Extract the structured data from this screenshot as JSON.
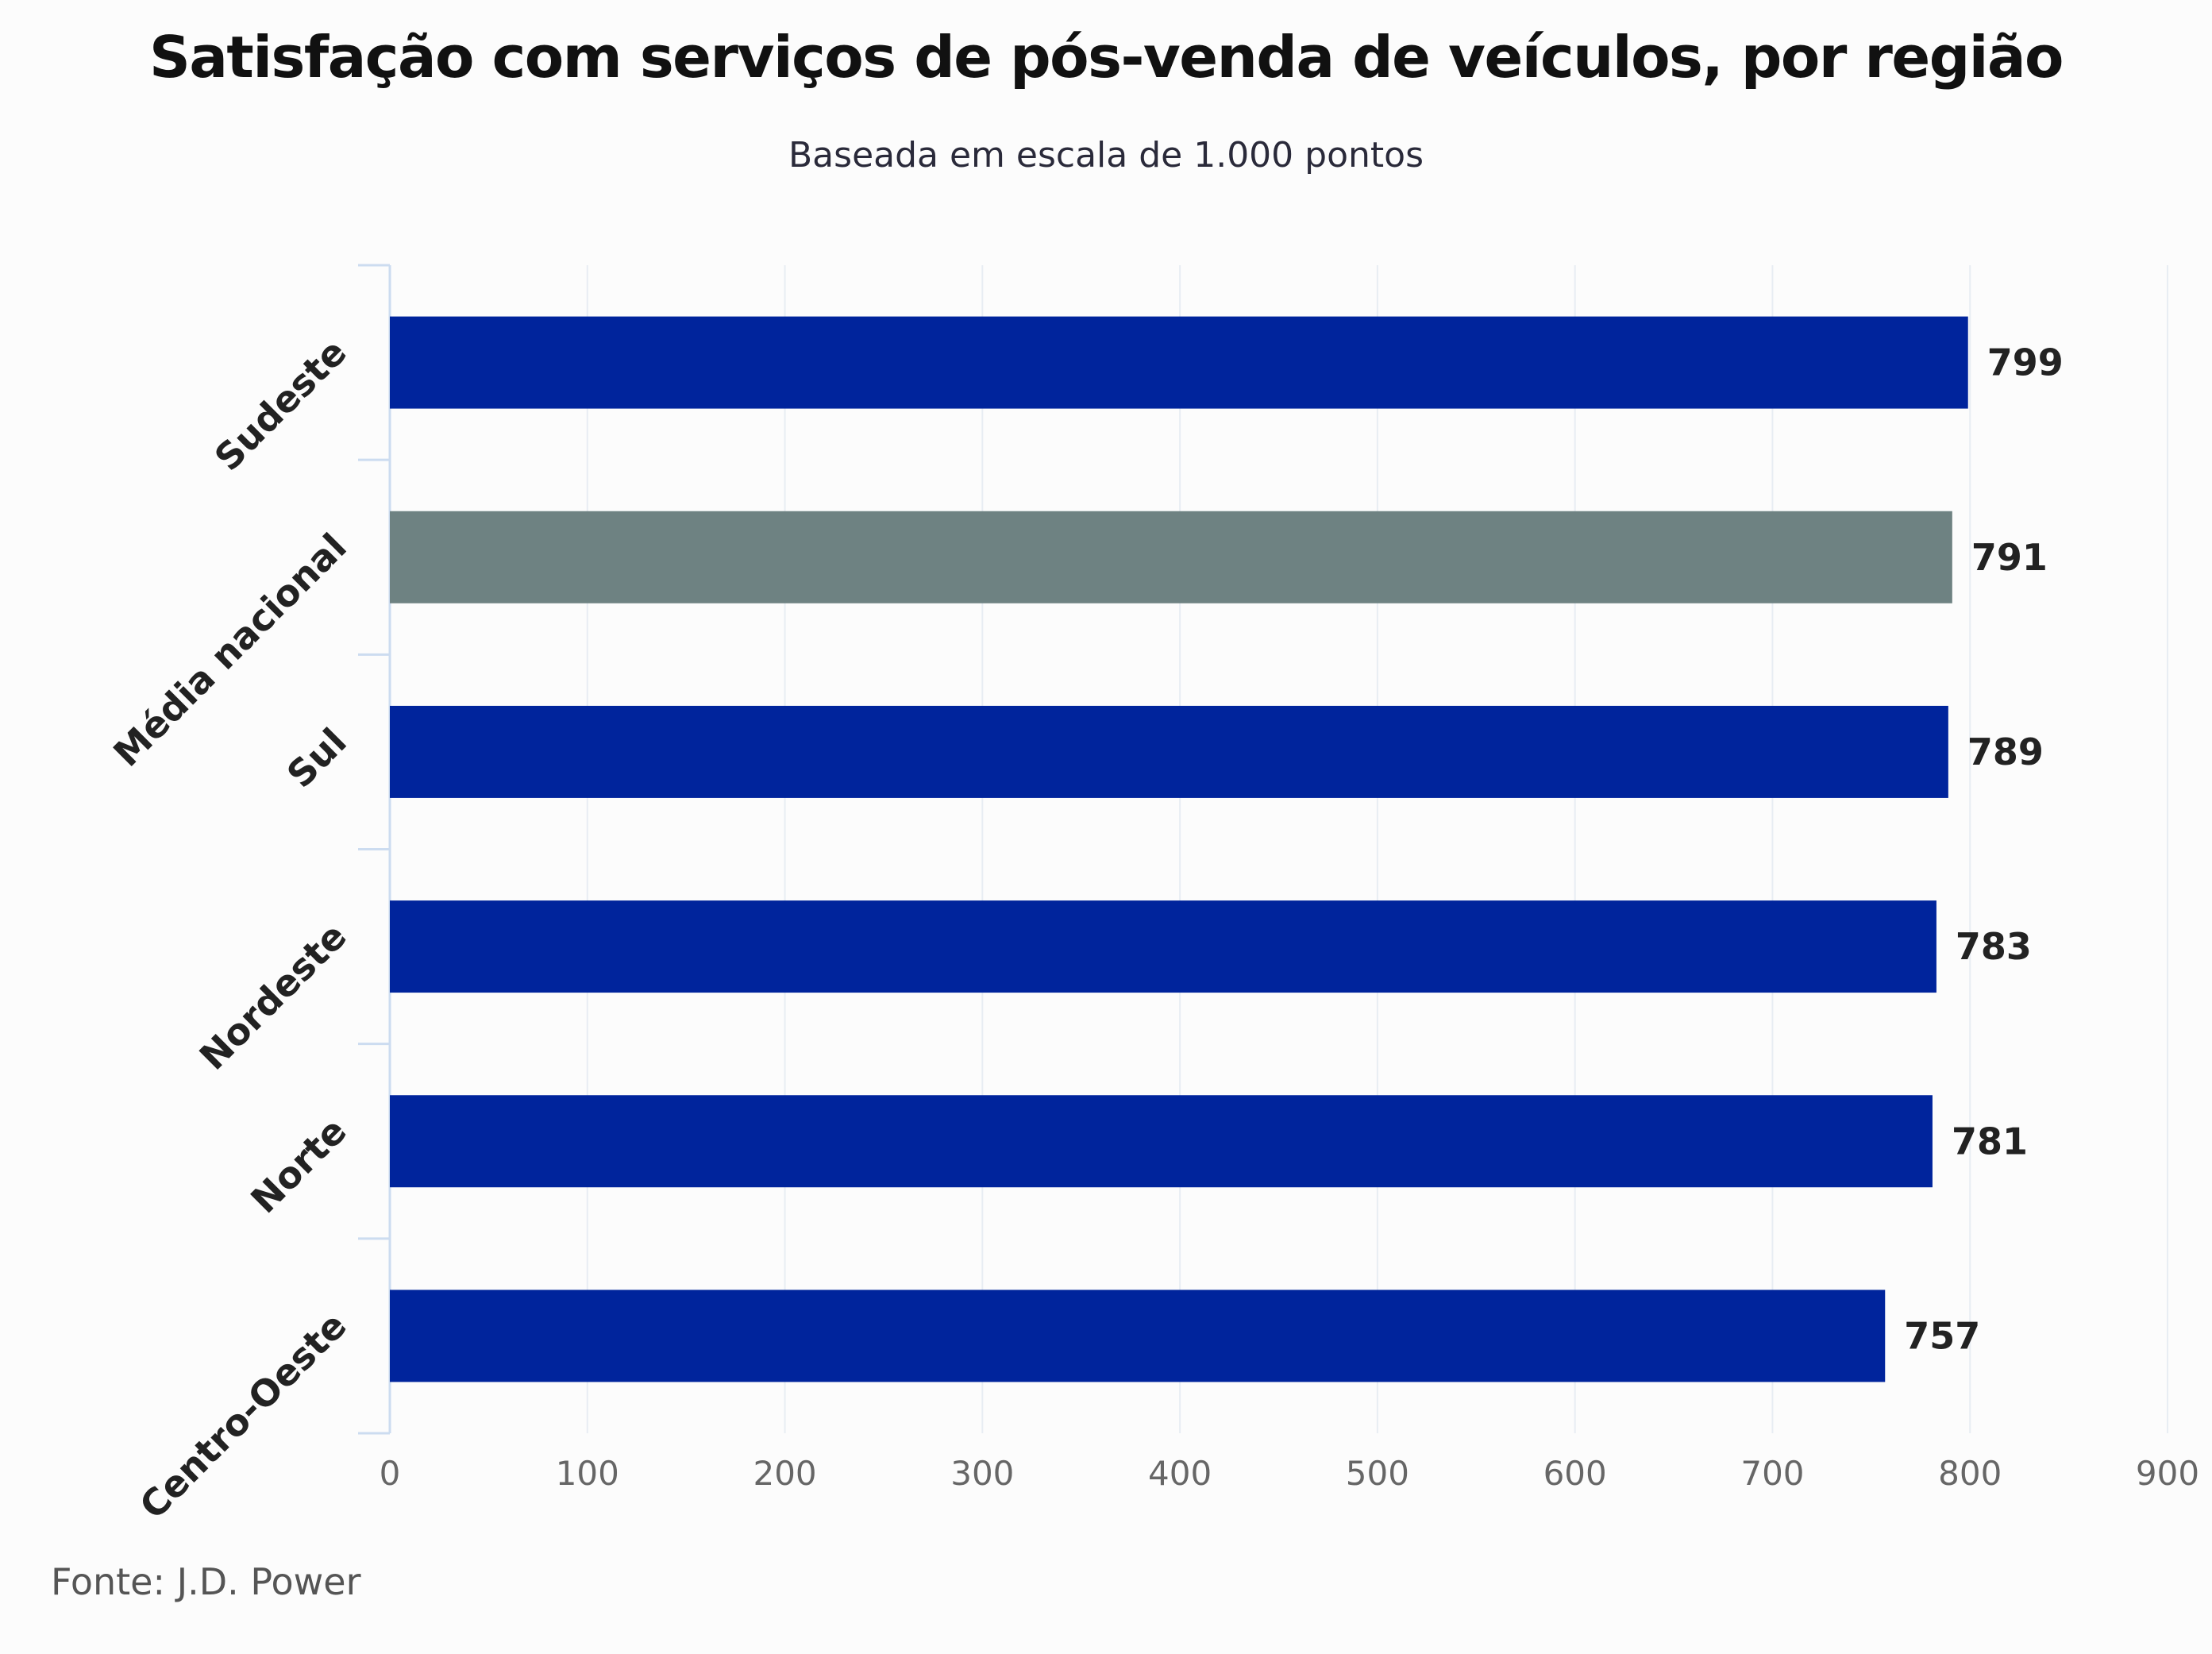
{
  "chart_data": {
    "type": "bar",
    "orientation": "horizontal",
    "title": "Satisfação com serviços de pós-venda de veículos, por região",
    "subtitle": "Baseada em escala de 1.000 pontos",
    "source": "Fonte: J.D. Power",
    "categories": [
      "Sudeste",
      "Média nacional",
      "Sul",
      "Nordeste",
      "Norte",
      "Centro-Oeste"
    ],
    "values": [
      799,
      791,
      789,
      783,
      781,
      757
    ],
    "highlight_category": "Média nacional",
    "x_ticks": [
      "0",
      "100",
      "200",
      "300",
      "400",
      "500",
      "600",
      "700",
      "800",
      "900"
    ],
    "xlim": [
      0,
      900
    ],
    "xlabel": "",
    "ylabel": "",
    "grid": true,
    "colors": {
      "bar": "#00249c",
      "highlight": "#6e8282",
      "grid": "#e8edf3",
      "axis": "#ccdcf0",
      "tick_label": "#666666",
      "category_label": "#222222",
      "value_label": "#222222"
    }
  }
}
